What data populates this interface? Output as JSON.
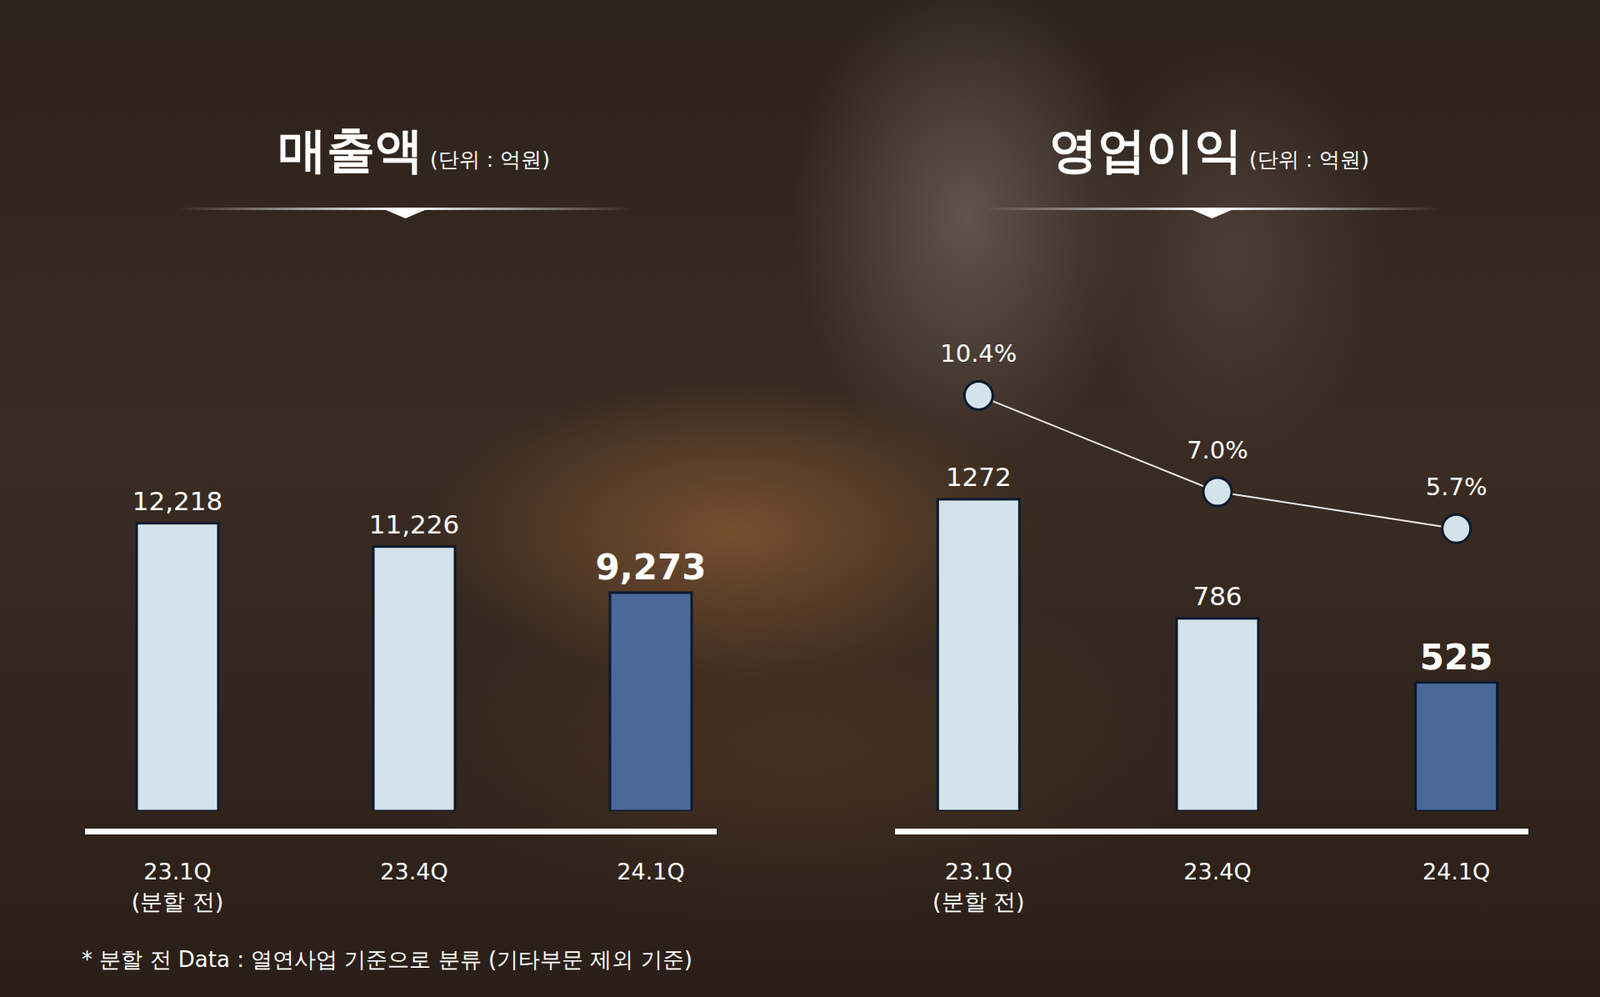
{
  "chart_data": [
    {
      "type": "bar",
      "title": "매출액",
      "subtitle": "(단위 : 억원)",
      "categories": [
        "23.1Q\n(분할 전)",
        "23.4Q",
        "24.1Q"
      ],
      "values": [
        12218,
        11226,
        9273
      ],
      "value_labels": [
        "12,218",
        "11,226",
        "9,273"
      ],
      "colors": [
        "#d4e2ea",
        "#d4e2ea",
        "#4a6898"
      ],
      "ylim": [
        0,
        15000
      ],
      "data_labels": true,
      "tick_labels": "x",
      "grid": false
    },
    {
      "type": "bar",
      "title": "영업이익",
      "subtitle": "(단위 : 억원)",
      "categories": [
        "23.1Q\n(분할 전)",
        "23.4Q",
        "24.1Q"
      ],
      "series": [
        {
          "type": "bar",
          "values": [
            1272,
            786,
            525
          ],
          "colors": [
            "#d4e2ea",
            "#d4e2ea",
            "#4a6898"
          ]
        },
        {
          "type": "line",
          "axis": "y2",
          "values": [
            10.4,
            7.0,
            5.7
          ],
          "value_labels": [
            "10.4%",
            "7.0%",
            "5.7%"
          ],
          "color": "#d4e2ea",
          "marker": "circle",
          "line_style": "solid"
        }
      ],
      "ylim": [
        0,
        1700
      ],
      "y2lim": [
        2,
        12
      ],
      "data_labels": true,
      "tick_labels": "x",
      "grid": false
    }
  ],
  "footnote": "* 분할 전 Data : 열연사업 기준으로 분류 (기타부문 제외 기준)"
}
